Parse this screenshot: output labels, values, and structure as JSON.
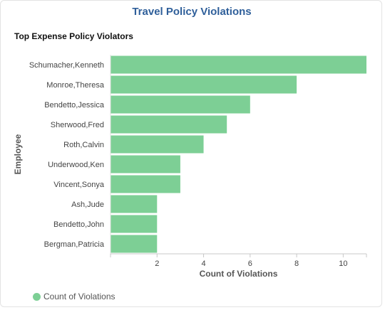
{
  "header": {
    "title": "Travel Policy Violations"
  },
  "chart_data": {
    "type": "bar",
    "orientation": "horizontal",
    "title": "Top Expense Policy Violators",
    "xlabel": "Count of Violations",
    "ylabel": "Employee",
    "categories": [
      "Schumacher,Kenneth",
      "Monroe,Theresa",
      "Bendetto,Jessica",
      "Sherwood,Fred",
      "Roth,Calvin",
      "Underwood,Ken",
      "Vincent,Sonya",
      "Ash,Jude",
      "Bendetto,John",
      "Bergman,Patricia"
    ],
    "series": [
      {
        "name": "Count of Violations",
        "values": [
          11,
          8,
          6,
          5,
          4,
          3,
          3,
          2,
          2,
          2
        ]
      }
    ],
    "xlim": [
      0,
      11
    ],
    "xticks": [
      2,
      4,
      6,
      8,
      10
    ],
    "grid": false,
    "legend": "bottom-left",
    "colors": {
      "bar": "#7dcf95",
      "title": "#2f5f9a"
    }
  }
}
